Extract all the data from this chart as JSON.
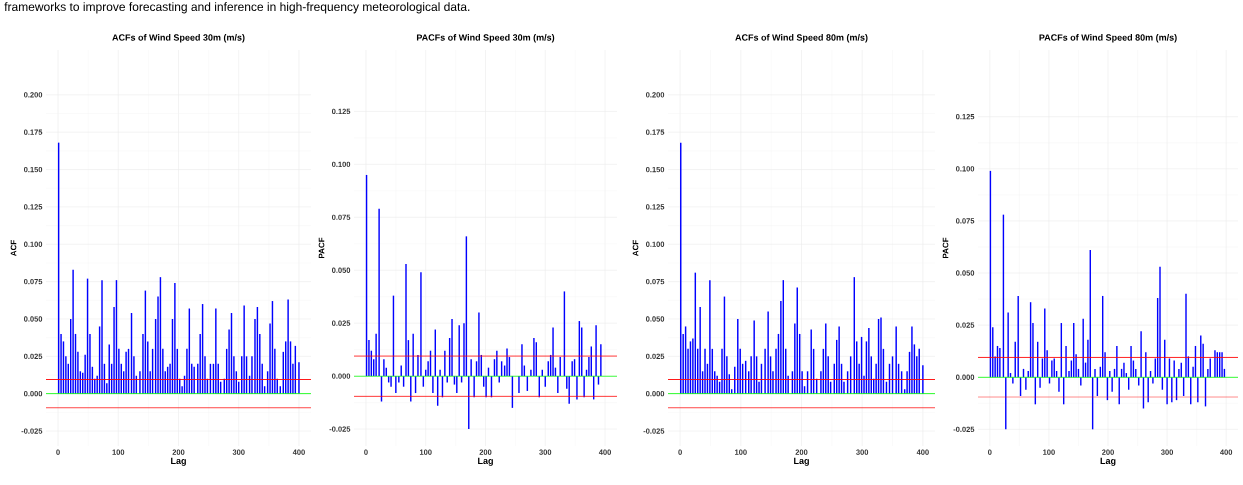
{
  "chart_data": [
    {
      "type": "bar",
      "title": "ACFs of Wind Speed 30m (m/s)",
      "xlabel": "Lag",
      "ylabel": "ACF",
      "grid": true,
      "annotations": [
        "frameworks to improve forecasting and inference in high-frequency meteorological data."
      ],
      "xlim": [
        -20,
        420
      ],
      "ylim": [
        -0.035,
        0.23
      ],
      "xticks": [
        0,
        100,
        200,
        300,
        400
      ],
      "yticks": [
        {
          "value": -0.025,
          "label": "-0.025"
        },
        {
          "value": 0,
          "label": "0.000"
        },
        {
          "value": 0.025,
          "label": "0.025"
        },
        {
          "value": 0.05,
          "label": "0.050"
        },
        {
          "value": 0.075,
          "label": "0.075"
        },
        {
          "value": 0.1,
          "label": "0.100"
        },
        {
          "value": 0.125,
          "label": "0.125"
        },
        {
          "value": 0.15,
          "label": "0.150"
        },
        {
          "value": 0.175,
          "label": "0.175"
        },
        {
          "value": 0.2,
          "label": "0.200"
        }
      ],
      "ref_lines": [
        {
          "axis": "y",
          "value": 0.0095,
          "color": "#ff0000"
        },
        {
          "axis": "y",
          "value": -0.0095,
          "color": "#ff0000"
        },
        {
          "axis": "y",
          "value": 0,
          "color": "#00ff00"
        }
      ],
      "series": [
        {
          "color": "#0000ff",
          "x": [
            1,
            5,
            9,
            13,
            17,
            21,
            25,
            29,
            33,
            37,
            41,
            45,
            49,
            53,
            57,
            61,
            65,
            69,
            73,
            77,
            81,
            85,
            89,
            93,
            97,
            101,
            105,
            109,
            113,
            117,
            122,
            126,
            130,
            136,
            141,
            145,
            149,
            153,
            157,
            162,
            166,
            170,
            174,
            178,
            182,
            186,
            190,
            194,
            198,
            202,
            206,
            210,
            214,
            218,
            222,
            226,
            232,
            236,
            240,
            244,
            248,
            253,
            258,
            262,
            266,
            270,
            276,
            280,
            284,
            288,
            292,
            296,
            300,
            305,
            309,
            313,
            318,
            322,
            327,
            331,
            335,
            339,
            343,
            348,
            352,
            356,
            360,
            364,
            369,
            374,
            378,
            382,
            386,
            390,
            394,
            400
          ],
          "values": [
            0.168,
            0.04,
            0.035,
            0.025,
            0.02,
            0.05,
            0.083,
            0.04,
            0.028,
            0.015,
            0.014,
            0.026,
            0.077,
            0.04,
            0.018,
            0.01,
            0.012,
            0.045,
            0.076,
            0.02,
            0.007,
            0.033,
            0.02,
            0.058,
            0.076,
            0.03,
            0.02,
            0.015,
            0.028,
            0.03,
            0.054,
            0.025,
            0.012,
            0.015,
            0.04,
            0.069,
            0.035,
            0.015,
            0.03,
            0.05,
            0.065,
            0.078,
            0.03,
            0.015,
            0.018,
            0.02,
            0.05,
            0.074,
            0.03,
            0.01,
            0.005,
            0.012,
            0.03,
            0.057,
            0.02,
            0.018,
            0.02,
            0.04,
            0.06,
            0.025,
            0.01,
            0.02,
            0.02,
            0.057,
            0.02,
            0.008,
            0.01,
            0.03,
            0.043,
            0.054,
            0.025,
            0.015,
            0.008,
            0.025,
            0.059,
            0.025,
            0.012,
            0.025,
            0.05,
            0.058,
            0.04,
            0.02,
            0.005,
            0.015,
            0.047,
            0.062,
            0.03,
            0.01,
            0.005,
            0.028,
            0.035,
            0.063,
            0.035,
            0.02,
            0.032,
            0.021
          ]
        }
      ]
    },
    {
      "type": "bar",
      "title": "PACFs of Wind Speed 30m (m/s)",
      "xlabel": "Lag",
      "ylabel": "PACF",
      "grid": true,
      "xlim": [
        -20,
        420
      ],
      "ylim": [
        -0.033,
        0.154
      ],
      "xticks": [
        0,
        100,
        200,
        300,
        400
      ],
      "yticks": [
        {
          "value": -0.025,
          "label": "-0.025"
        },
        {
          "value": 0,
          "label": "0.000"
        },
        {
          "value": 0.025,
          "label": "0.025"
        },
        {
          "value": 0.05,
          "label": "0.050"
        },
        {
          "value": 0.075,
          "label": "0.075"
        },
        {
          "value": 0.1,
          "label": "0.100"
        },
        {
          "value": 0.125,
          "label": "0.125"
        }
      ],
      "ref_lines": [
        {
          "axis": "y",
          "value": 0.0095,
          "color": "#ff0000"
        },
        {
          "axis": "y",
          "value": -0.0095,
          "color": "#ff0000"
        },
        {
          "axis": "y",
          "value": 0,
          "color": "#00ff00"
        }
      ],
      "series": [
        {
          "color": "#0000ff",
          "x": [
            1,
            5,
            9,
            13,
            17,
            22,
            26,
            30,
            34,
            38,
            42,
            46,
            50,
            55,
            59,
            63,
            67,
            71,
            75,
            79,
            83,
            87,
            92,
            96,
            100,
            104,
            108,
            112,
            116,
            120,
            124,
            128,
            132,
            136,
            140,
            144,
            148,
            152,
            156,
            160,
            164,
            168,
            172,
            176,
            181,
            185,
            189,
            193,
            197,
            201,
            205,
            210,
            215,
            219,
            223,
            227,
            232,
            236,
            240,
            245,
            250,
            256,
            261,
            265,
            270,
            276,
            281,
            285,
            290,
            295,
            300,
            305,
            309,
            313,
            317,
            321,
            325,
            332,
            336,
            340,
            345,
            349,
            353,
            357,
            361,
            365,
            369,
            373,
            377,
            381,
            385,
            389,
            393
          ],
          "values": [
            0.095,
            0.017,
            0.012,
            0.008,
            0.02,
            0.079,
            -0.012,
            0.008,
            0.004,
            -0.003,
            -0.005,
            0.038,
            -0.008,
            -0.003,
            0.005,
            -0.005,
            0.053,
            0.017,
            -0.012,
            0.02,
            -0.008,
            0.01,
            0.049,
            -0.005,
            0.003,
            0.007,
            0.012,
            -0.008,
            0.022,
            -0.014,
            0.003,
            -0.01,
            0.012,
            -0.003,
            0.018,
            0.027,
            -0.004,
            -0.008,
            0.024,
            -0.003,
            0.025,
            0.066,
            -0.025,
            0.008,
            -0.01,
            0.007,
            0.03,
            0.01,
            -0.005,
            -0.01,
            0.004,
            -0.01,
            0.008,
            0.012,
            -0.003,
            0.007,
            0.005,
            0.013,
            0.009,
            -0.015,
            null,
            -0.008,
            0.015,
            0.005,
            -0.007,
            0.003,
            0.018,
            0.016,
            -0.01,
            0.003,
            -0.005,
            0.007,
            0.01,
            0.023,
            0.004,
            -0.008,
            0.009,
            0.04,
            -0.006,
            -0.013,
            0.007,
            0.008,
            -0.011,
            0.026,
            0.023,
            -0.01,
            0.003,
            0.009,
            0.014,
            -0.011,
            0.024,
            -0.004,
            0.015
          ]
        }
      ]
    },
    {
      "type": "bar",
      "title": "ACFs of Wind Speed 80m (m/s)",
      "xlabel": "Lag",
      "ylabel": "ACF",
      "grid": true,
      "xlim": [
        -20,
        420
      ],
      "ylim": [
        -0.035,
        0.23
      ],
      "xticks": [
        0,
        100,
        200,
        300,
        400
      ],
      "yticks": [
        {
          "value": -0.025,
          "label": "-0.025"
        },
        {
          "value": 0,
          "label": "0.000"
        },
        {
          "value": 0.025,
          "label": "0.025"
        },
        {
          "value": 0.05,
          "label": "0.050"
        },
        {
          "value": 0.075,
          "label": "0.075"
        },
        {
          "value": 0.1,
          "label": "0.100"
        },
        {
          "value": 0.125,
          "label": "0.125"
        },
        {
          "value": 0.15,
          "label": "0.150"
        },
        {
          "value": 0.175,
          "label": "0.175"
        },
        {
          "value": 0.2,
          "label": "0.200"
        }
      ],
      "ref_lines": [
        {
          "axis": "y",
          "value": 0.0095,
          "color": "#ff0000"
        },
        {
          "axis": "y",
          "value": -0.0095,
          "color": "#ff0000"
        },
        {
          "axis": "y",
          "value": 0,
          "color": "#00ff00"
        }
      ],
      "series": [
        {
          "color": "#0000ff",
          "x": [
            1,
            5,
            9,
            13,
            17,
            21,
            25,
            29,
            33,
            37,
            41,
            45,
            49,
            53,
            57,
            61,
            65,
            69,
            73,
            77,
            81,
            85,
            90,
            95,
            99,
            103,
            108,
            113,
            117,
            122,
            126,
            130,
            134,
            140,
            145,
            149,
            153,
            158,
            162,
            166,
            170,
            174,
            178,
            185,
            189,
            193,
            197,
            201,
            205,
            210,
            216,
            220,
            225,
            232,
            236,
            240,
            244,
            248,
            254,
            258,
            262,
            266,
            270,
            276,
            281,
            287,
            291,
            295,
            299,
            303,
            307,
            311,
            315,
            319,
            323,
            327,
            331,
            335,
            340,
            345,
            350,
            356,
            360,
            365,
            370,
            374,
            378,
            382,
            386,
            390,
            394,
            400
          ],
          "values": [
            0.168,
            0.04,
            0.045,
            0.03,
            0.035,
            0.037,
            0.081,
            0.03,
            0.058,
            0.015,
            0.03,
            0.02,
            0.076,
            0.03,
            0.015,
            0.012,
            0.008,
            0.03,
            0.065,
            0.025,
            0.013,
            0.003,
            0.018,
            0.05,
            0.03,
            0.02,
            0.022,
            0.015,
            0.025,
            0.049,
            0.025,
            0.008,
            0.02,
            0.03,
            0.055,
            0.025,
            0.015,
            0.03,
            0.04,
            0.062,
            0.076,
            0.03,
            0.012,
            0.015,
            0.047,
            0.071,
            0.04,
            0.015,
            0.005,
            0.015,
            0.043,
            0.03,
            0.01,
            0.015,
            0.03,
            0.047,
            0.025,
            0.008,
            0.02,
            0.036,
            0.045,
            0.02,
            0.008,
            0.015,
            0.025,
            0.078,
            0.035,
            0.02,
            0.038,
            0.012,
            0.035,
            0.044,
            0.025,
            0.01,
            0.02,
            0.05,
            0.051,
            0.03,
            0.008,
            0.02,
            0.025,
            0.045,
            0.02,
            0.015,
            0.003,
            0.015,
            0.028,
            0.045,
            0.033,
            0.025,
            0.03,
            0.019
          ]
        }
      ]
    },
    {
      "type": "bar",
      "title": "PACFs of Wind Speed 80m (m/s)",
      "xlabel": "Lag",
      "ylabel": "PACF",
      "grid": true,
      "xlim": [
        -20,
        420
      ],
      "ylim": [
        -0.033,
        0.157
      ],
      "xticks": [
        0,
        100,
        200,
        300,
        400
      ],
      "yticks": [
        {
          "value": -0.025,
          "label": "-0.025"
        },
        {
          "value": 0,
          "label": "0.000"
        },
        {
          "value": 0.025,
          "label": "0.025"
        },
        {
          "value": 0.05,
          "label": "0.050"
        },
        {
          "value": 0.075,
          "label": "0.075"
        },
        {
          "value": 0.1,
          "label": "0.100"
        },
        {
          "value": 0.125,
          "label": "0.125"
        }
      ],
      "ref_lines": [
        {
          "axis": "y",
          "value": 0.0095,
          "color": "#ff0000"
        },
        {
          "axis": "y",
          "value": -0.0095,
          "color": "#ff0000"
        },
        {
          "axis": "y",
          "value": 0,
          "color": "#00ff00"
        }
      ],
      "series": [
        {
          "color": "#0000ff",
          "x": [
            1,
            5,
            9,
            13,
            17,
            23,
            27,
            31,
            35,
            39,
            43,
            48,
            52,
            57,
            61,
            65,
            69,
            73,
            77,
            81,
            85,
            89,
            93,
            97,
            101,
            105,
            109,
            113,
            117,
            121,
            125,
            129,
            134,
            138,
            142,
            146,
            150,
            154,
            158,
            162,
            166,
            170,
            174,
            178,
            182,
            187,
            191,
            195,
            199,
            203,
            207,
            211,
            215,
            219,
            223,
            227,
            231,
            235,
            239,
            243,
            247,
            252,
            256,
            260,
            264,
            268,
            272,
            276,
            280,
            284,
            288,
            292,
            296,
            300,
            304,
            308,
            312,
            316,
            320,
            324,
            328,
            332,
            336,
            340,
            344,
            348,
            352,
            357,
            361,
            365,
            369,
            373,
            377,
            381,
            385,
            389,
            393,
            397
          ],
          "values": [
            0.099,
            0.024,
            0.01,
            0.015,
            0.014,
            0.078,
            -0.025,
            0.031,
            0.002,
            -0.003,
            0.017,
            0.039,
            -0.009,
            0.004,
            -0.006,
            0.003,
            0.036,
            0.026,
            -0.013,
            0.017,
            -0.005,
            0.009,
            0.033,
            0.013,
            -0.003,
            0.008,
            0.009,
            0.003,
            -0.007,
            0.026,
            -0.013,
            0.015,
            0.003,
            0.008,
            0.026,
            0.011,
            0.004,
            -0.004,
            0.028,
            0.007,
            0.018,
            0.061,
            -0.025,
            0.004,
            -0.009,
            0.005,
            0.039,
            0.012,
            -0.011,
            0.003,
            -0.007,
            0.004,
            0.015,
            -0.013,
            0.004,
            0.007,
            0.002,
            -0.006,
            0.015,
            0.008,
            0.004,
            -0.004,
            0.022,
            -0.015,
            0.012,
            -0.012,
            0.003,
            -0.003,
            0.009,
            0.038,
            0.053,
            -0.006,
            0.018,
            -0.013,
            0.009,
            -0.012,
            0.008,
            -0.011,
            0.004,
            0.007,
            -0.009,
            0.04,
            0.01,
            -0.013,
            0.005,
            0.015,
            -0.012,
            0.02,
            0.016,
            -0.014,
            0.004,
            0.009,
            null,
            0.013,
            0.012,
            0.012,
            0.012,
            0.004
          ]
        }
      ]
    }
  ]
}
